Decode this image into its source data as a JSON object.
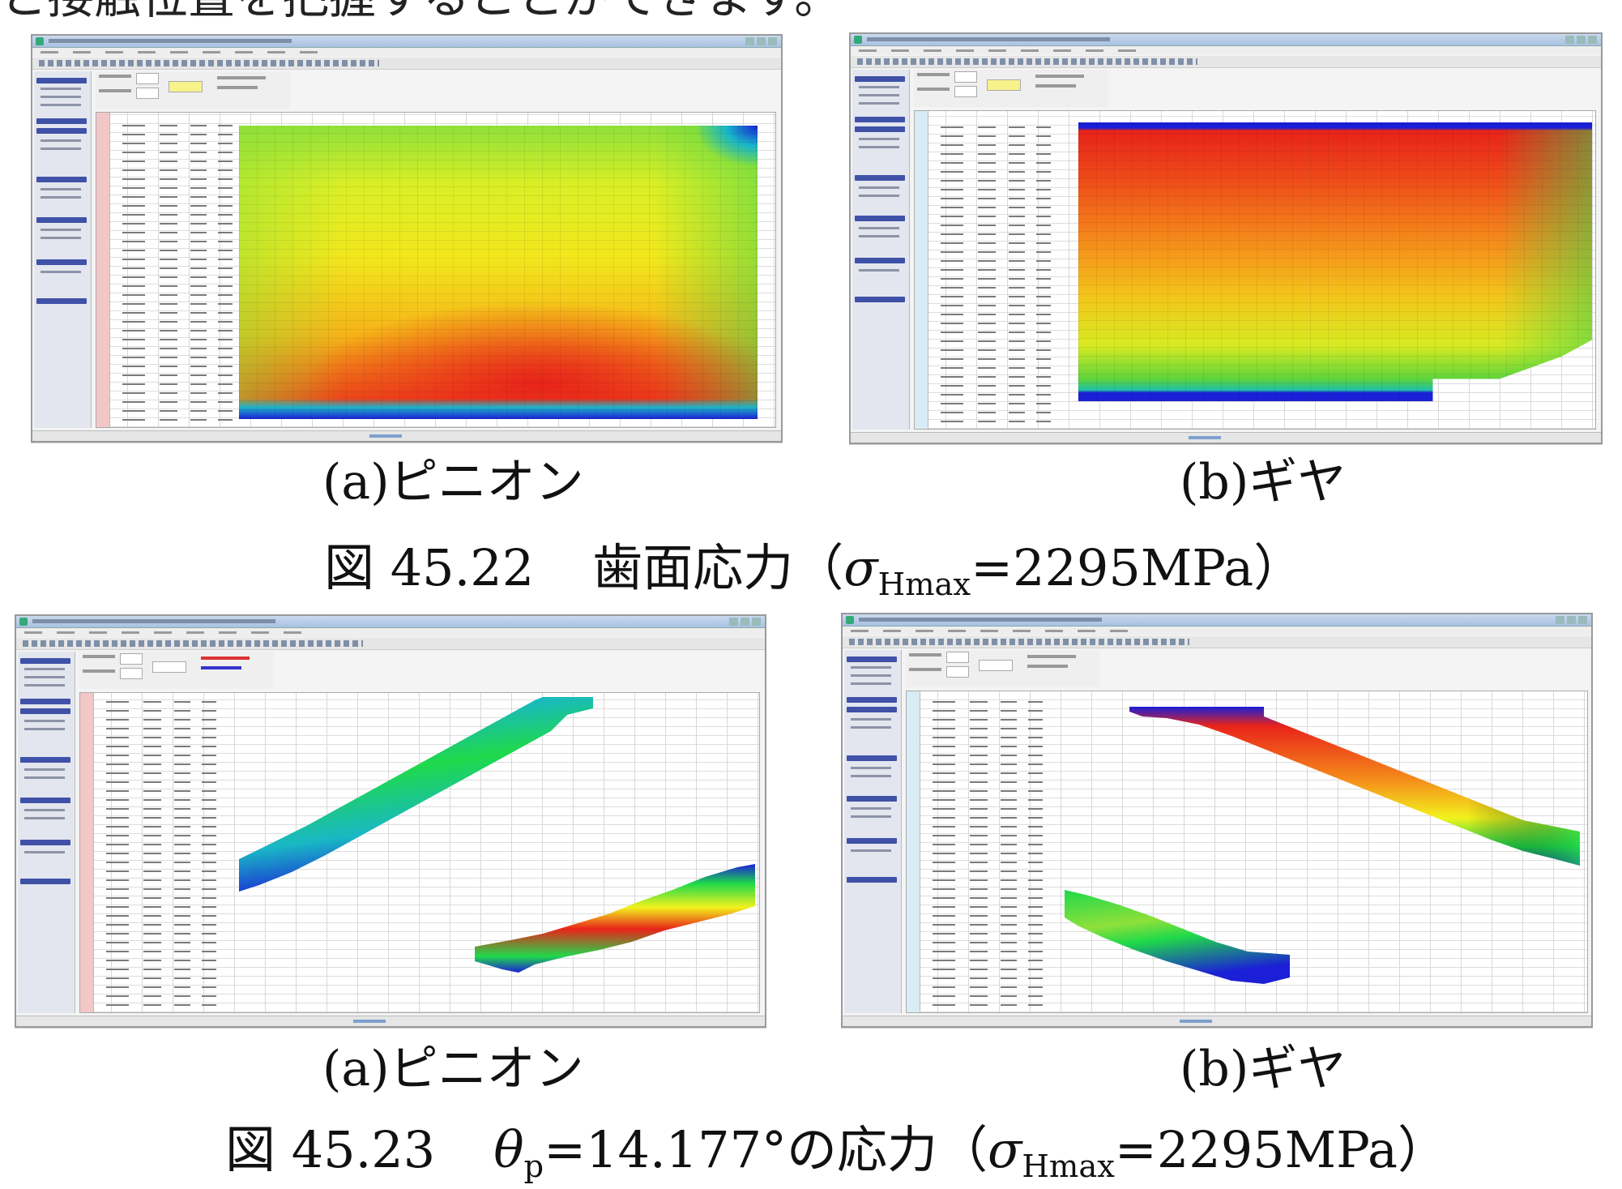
{
  "header_fragment": "と接触位置を把握することができます。",
  "figure_45_22": {
    "label": "図 45.22",
    "title_prefix": "歯面応力",
    "open_paren": "（",
    "sigma": "σ",
    "sigma_sub": "Hmax",
    "value": "=2295MPa",
    "close_paren": "）",
    "panel_a_caption": "(a)ピニオン",
    "panel_b_caption": "(b)ギヤ"
  },
  "figure_45_23": {
    "label": "図 45.23",
    "theta": "θ",
    "theta_sub": "p",
    "theta_value": "=14.177°の応力",
    "open_paren": "（",
    "sigma": "σ",
    "sigma_sub": "Hmax",
    "value": "=2295MPa",
    "close_paren": "）",
    "panel_a_caption": "(a)ピニオン",
    "panel_b_caption": "(b)ギヤ"
  },
  "colors": {
    "stress_low": "#1b1fd6",
    "stress_mid_low": "#1fd94a",
    "stress_mid": "#f2f21c",
    "stress_mid_high": "#f59a16",
    "stress_high": "#e8231a"
  }
}
